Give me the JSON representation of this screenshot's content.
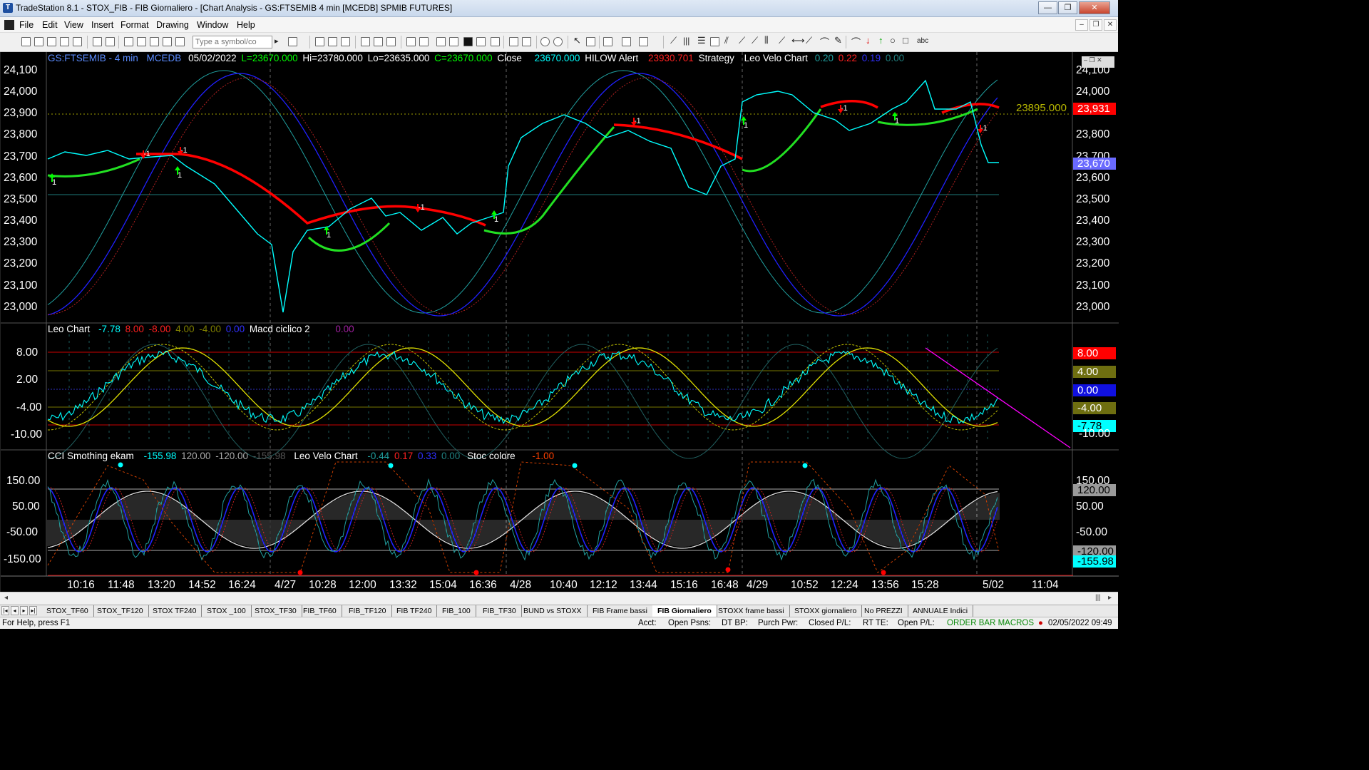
{
  "window": {
    "title": "TradeStation 8.1 - STOX_FIB - FIB Giornaliero - [Chart Analysis - GS:FTSEMIB  4 min  [MCEDB] SPMIB FUTURES]",
    "min_label": "—",
    "max_label": "❐",
    "close_label": "✕"
  },
  "menu": [
    "File",
    "Edit",
    "View",
    "Insert",
    "Format",
    "Drawing",
    "Window",
    "Help"
  ],
  "toolbar": {
    "symbol_placeholder": "Type a symbol/co",
    "abc_label": "abc"
  },
  "header": {
    "symbol": "GS:FTSEMIB - 4 min",
    "source": "MCEDB",
    "date": "05/02/2022",
    "last": "L=23670.000",
    "high": "Hi=23780.000",
    "low": "Lo=23635.000",
    "close_c": "C=23670.000",
    "close_label": "Close",
    "close_value": "23670.000",
    "hilow_label": "HILOW Alert",
    "hilow_value": "23930.701",
    "strategy_label": "Strategy",
    "velo_label": "Leo Velo Chart",
    "velo_v1": "0.20",
    "velo_v2": "0.22",
    "velo_v3": "0.19",
    "velo_v4": "0.00"
  },
  "pane2_header": {
    "name": "Leo Chart",
    "v1": "-7.78",
    "v2": "8.00",
    "v3": "-8.00",
    "v4": "4.00",
    "v5": "-4.00",
    "v6": "0.00",
    "macd_label": "Macd ciclico 2",
    "macd_value": "0.00"
  },
  "pane3_header": {
    "name": "CCI Smothing ekam",
    "v1": "-155.98",
    "v2": "120.00",
    "v3": "-120.00",
    "v4": "-155.98",
    "velo_label": "Leo Velo Chart",
    "velo_v1": "-0.44",
    "velo_v2": "0.17",
    "velo_v3": "0.33",
    "velo_v4": "0.00",
    "stoc_label": "Stoc colore",
    "stoc_value": "-1.00"
  },
  "price_axis": [
    "24,100",
    "24,000",
    "23,900",
    "23,800",
    "23,700",
    "23,600",
    "23,500",
    "23,400",
    "23,300",
    "23,200",
    "23,100",
    "23,000"
  ],
  "price_axis_right": [
    "24,100",
    "24,000",
    "23,800",
    "23,700",
    "23,600",
    "23,500",
    "23,400",
    "23,300",
    "23,200",
    "23,100",
    "23,000"
  ],
  "price_tags": {
    "hilow": "23,931",
    "last": "23,670",
    "level_line": "23895.000"
  },
  "osc_axis": [
    "8.00",
    "2.00",
    "-4.00",
    "-10.00"
  ],
  "osc_tags": {
    "upper": "8.00",
    "mid_upper": "4.00",
    "zero": "0.00",
    "mid_lower": "-4.00",
    "current": "-7.78",
    "bottom": "-10.00"
  },
  "cci_axis": [
    "150.00",
    "50.00",
    "-50.00",
    "-150.00"
  ],
  "cci_axis_right": [
    "150.00",
    "50.00",
    "-50.00"
  ],
  "cci_tags": {
    "upper": "120.00",
    "lower": "-120.00",
    "current": "-155.98"
  },
  "time_axis": [
    "10:16",
    "11:48",
    "13:20",
    "14:52",
    "16:24",
    "4/27",
    "10:28",
    "12:00",
    "13:32",
    "15:04",
    "16:36",
    "4/28",
    "10:40",
    "12:12",
    "13:44",
    "15:16",
    "16:48",
    "4/29",
    "10:52",
    "12:24",
    "13:56",
    "15:28",
    "5/02",
    "11:04"
  ],
  "signals": [
    "1",
    "-1",
    "-1",
    "1",
    "1",
    "-1",
    "1",
    "-1",
    "1",
    "-1",
    "1",
    "-1"
  ],
  "tabs": [
    "STOX_TF60",
    "STOX_TF120",
    "STOX TF240",
    "STOX _100",
    "STOX_TF30",
    "FIB_TF60",
    "FIB_TF120",
    "FIB TF240",
    "FIB_100",
    "FIB_TF30",
    "BUND vs STOXX",
    "FIB Frame bassi",
    "FIB Giornaliero",
    "STOXX frame bassi",
    "STOXX giornaliero",
    "No PREZZI",
    "ANNUALE Indici"
  ],
  "active_tab": "FIB Giornaliero",
  "status": {
    "help": "For Help, press F1",
    "acct": "Acct:",
    "open_psns": "Open Psns:",
    "dt_bp": "DT BP:",
    "purch_pwr": "Purch Pwr:",
    "closed_pl": "Closed P/L:",
    "rt_te": "RT TE:",
    "open_pl": "Open P/L:",
    "macros": "ORDER BAR  MACROS",
    "datetime": "02/05/2022 09:49"
  },
  "colors": {
    "price": "#00ffff",
    "up_arrow": "#00ff00",
    "down_arrow": "#ff0000",
    "red_line": "#ff0000",
    "green_line": "#22e022",
    "blue_cycle": "#2020ff",
    "teal_cycle": "#20a0a0",
    "yellow": "#e0e000",
    "magenta": "#ff00ff",
    "hilow_tag": "#ff0000",
    "last_tag": "#6a6aff"
  }
}
